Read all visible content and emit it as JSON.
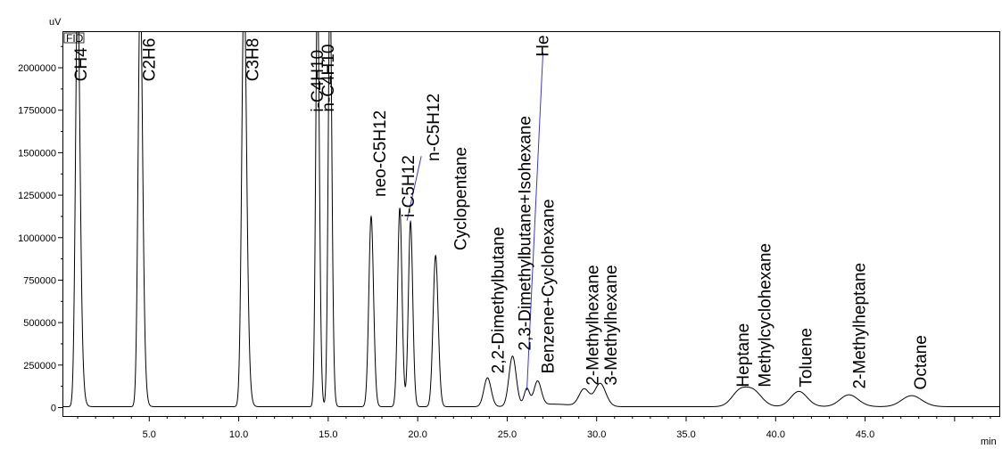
{
  "chart_data": {
    "type": "line",
    "y_unit": "uV",
    "x_unit": "min",
    "detector": "FID",
    "xlim": [
      0.2,
      52.5
    ],
    "ylim": [
      -50000,
      2210000
    ],
    "x_ticks": [
      5.0,
      10.0,
      15.0,
      20.0,
      25.0,
      30.0,
      35.0,
      40.0,
      45.0,
      50.0
    ],
    "x_tick_labels": [
      "5.0",
      "10.0",
      "15.0",
      "20.0",
      "25.0",
      "30.0",
      "35.0",
      "40.0",
      "45.0",
      ""
    ],
    "y_ticks": [
      0,
      250000,
      500000,
      750000,
      1000000,
      1250000,
      1500000,
      1750000,
      2000000
    ],
    "y_tick_labels": [
      "0",
      "250000",
      "500000",
      "750000",
      "1000000",
      "1250000",
      "1500000",
      "1750000",
      "2000000"
    ],
    "baseline": 5000,
    "peaks": [
      {
        "name": "CH4",
        "rt": 1.0,
        "height": 2500000,
        "width": 0.12,
        "tail": 0.6
      },
      {
        "name": "C2H6",
        "rt": 4.5,
        "height": 2500000,
        "width": 0.12,
        "tail": 0.5
      },
      {
        "name": "C3H8",
        "rt": 10.3,
        "height": 2500000,
        "width": 0.13,
        "tail": 0.5
      },
      {
        "name": "i-C4H10",
        "rt": 14.4,
        "height": 2500000,
        "width": 0.1,
        "tail": 0.3
      },
      {
        "name": "n-C4H10",
        "rt": 15.1,
        "height": 2500000,
        "width": 0.1,
        "tail": 0.3
      },
      {
        "name": "neo-C5H12",
        "rt": 17.4,
        "height": 1120000,
        "width": 0.13,
        "tail": 0.15
      },
      {
        "name": "i-C5H12",
        "rt": 19.0,
        "height": 1170000,
        "width": 0.12,
        "tail": 0.15
      },
      {
        "name": "n-C5H12",
        "rt": 19.6,
        "height": 1090000,
        "width": 0.12,
        "tail": 0.15
      },
      {
        "name": "Cyclopentane",
        "rt": 21.0,
        "height": 890000,
        "width": 0.14,
        "tail": 0.15
      },
      {
        "name": "2,2-Dimethylbutane",
        "rt": 23.9,
        "height": 170000,
        "width": 0.2,
        "tail": 0.1
      },
      {
        "name": "2,3-Dimethylbutane+Isohexane",
        "rt": 25.3,
        "height": 295000,
        "width": 0.2,
        "tail": 0.1
      },
      {
        "name": "He",
        "rt": 26.1,
        "height": 100000,
        "width": 0.15,
        "tail": 0.1
      },
      {
        "name": "Benzene+Cyclohexane",
        "rt": 26.7,
        "height": 140000,
        "width": 0.2,
        "tail": 0.1
      },
      {
        "name": "2-Methylhexane",
        "rt": 29.3,
        "height": 100000,
        "width": 0.28,
        "tail": 0.2
      },
      {
        "name": "3-Methylhexane",
        "rt": 30.2,
        "height": 135000,
        "width": 0.3,
        "tail": 0.2
      },
      {
        "name": "Heptane",
        "rt": 38.0,
        "height": 90000,
        "width": 0.45,
        "tail": 0.2
      },
      {
        "name": "Methylcyclohexane",
        "rt": 38.8,
        "height": 80000,
        "width": 0.45,
        "tail": 0.2
      },
      {
        "name": "Toluene",
        "rt": 41.3,
        "height": 90000,
        "width": 0.45,
        "tail": 0.2
      },
      {
        "name": "2-Methylheptane",
        "rt": 44.1,
        "height": 70000,
        "width": 0.5,
        "tail": 0.2
      },
      {
        "name": "Octane",
        "rt": 47.6,
        "height": 65000,
        "width": 0.55,
        "tail": 0.2
      }
    ],
    "labels": [
      {
        "text": "CH4",
        "x": 1.5,
        "y": 1920000
      },
      {
        "text": "C2H6",
        "x": 5.3,
        "y": 1920000
      },
      {
        "text": "C3H8",
        "x": 11.1,
        "y": 1920000
      },
      {
        "text": "i-C4H10",
        "x": 14.7,
        "y": 1740000
      },
      {
        "text": "n-C4H10",
        "x": 15.3,
        "y": 1740000
      },
      {
        "text": "neo-C5H12",
        "x": 18.2,
        "y": 1240000
      },
      {
        "text": "i-C5H12",
        "x": 19.8,
        "y": 1120000
      },
      {
        "text": "n-C5H12",
        "x": 21.2,
        "y": 1450000
      },
      {
        "text": "Cyclopentane",
        "x": 22.7,
        "y": 925000
      },
      {
        "text": "2,2-Dimethylbutane",
        "x": 24.8,
        "y": 200000
      },
      {
        "text": "2,3-Dimethylbutane+Isohexane",
        "x": 26.3,
        "y": 335000
      },
      {
        "text": "He",
        "x": 27.3,
        "y": 2065000
      },
      {
        "text": "Benzene+Cyclohexane",
        "x": 27.6,
        "y": 200000
      },
      {
        "text": "2-Methylhexane",
        "x": 30.1,
        "y": 130000
      },
      {
        "text": "3-Methylhexane",
        "x": 31.1,
        "y": 130000
      },
      {
        "text": "Heptane",
        "x": 38.5,
        "y": 120000
      },
      {
        "text": "Methylcyclohexane",
        "x": 39.7,
        "y": 120000
      },
      {
        "text": "Toluene",
        "x": 42.0,
        "y": 120000
      },
      {
        "text": "2-Methylheptane",
        "x": 45.0,
        "y": 110000
      },
      {
        "text": "Octane",
        "x": 48.4,
        "y": 105000
      }
    ],
    "label_leaders": [
      {
        "from": [
          19.4,
          1100000
        ],
        "to": [
          20.2,
          1480000
        ]
      },
      {
        "from": [
          26.1,
          100000
        ],
        "to": [
          27.0,
          2090000
        ]
      }
    ],
    "series_color": "#000000",
    "leader_color": "#3a3ac8"
  }
}
